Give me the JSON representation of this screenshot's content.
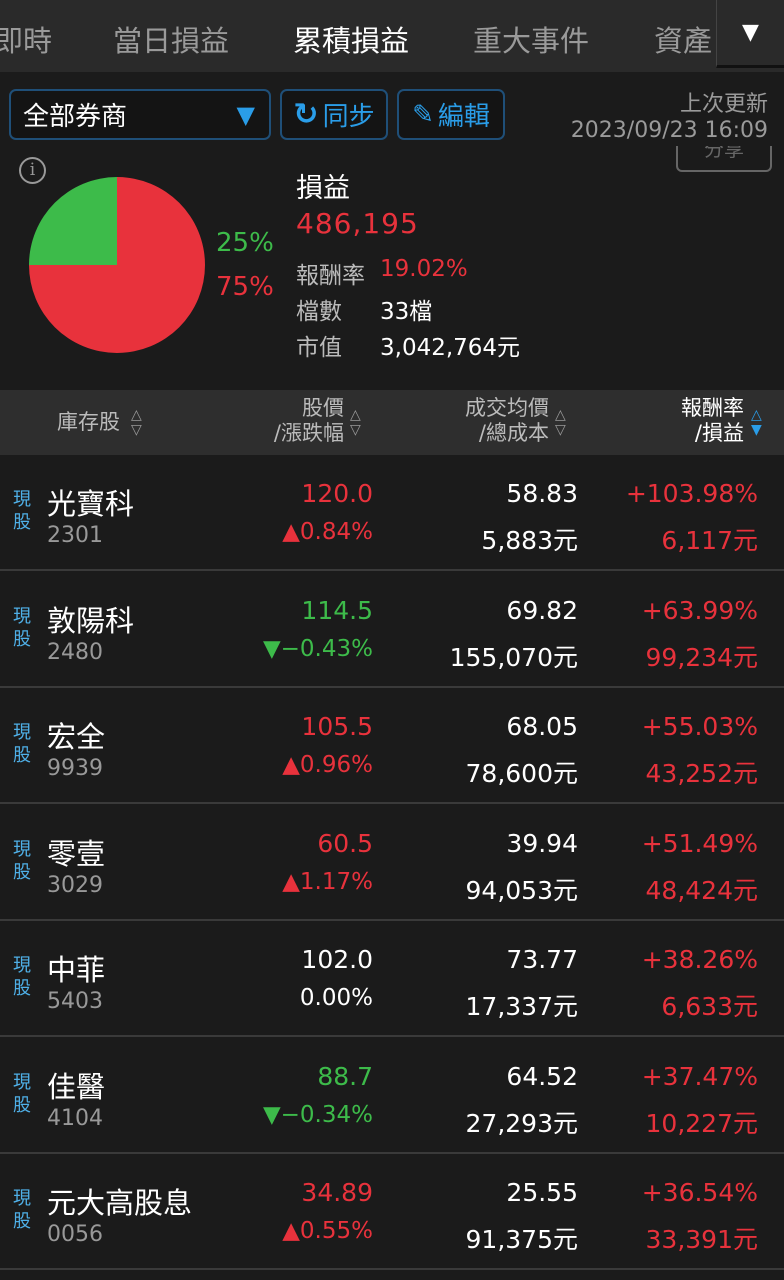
{
  "tabs": [
    {
      "label": "即時"
    },
    {
      "label": "當日損益"
    },
    {
      "label": "累積損益",
      "active": true
    },
    {
      "label": "重大事件"
    },
    {
      "label": "資產"
    }
  ],
  "toolbar": {
    "broker_select": "全部券商",
    "sync_label": "同步",
    "edit_label": "編輯",
    "last_update_label": "上次更新",
    "last_update_time": "2023/09/23 16:09",
    "share_label": "分享"
  },
  "summary": {
    "pl_label": "損益",
    "pl_value": "486,195",
    "return_label": "報酬率",
    "return_value": "19.02%",
    "count_label": "檔數",
    "count_value": "33檔",
    "mv_label": "市值",
    "mv_value": "3,042,764元",
    "pie": {
      "loss_pct": 25,
      "gain_pct": 75,
      "loss_label": "25%",
      "gain_label": "75%",
      "colors": {
        "gain": "#e8323c",
        "loss": "#3dbb4a"
      }
    }
  },
  "columns": {
    "stock": "庫存股",
    "price": "股價",
    "change": "/漲跌幅",
    "avg": "成交均價",
    "cost": "/總成本",
    "ret": "報酬率",
    "pl": "/損益"
  },
  "rows": [
    {
      "tag": "現股",
      "name": "光寶科",
      "code": "2301",
      "price": "120.0",
      "change": "▲0.84%",
      "dir": "up",
      "avg": "58.83",
      "cost": "5,883元",
      "ret": "+103.98%",
      "pl": "6,117元"
    },
    {
      "tag": "現股",
      "name": "敦陽科",
      "code": "2480",
      "price": "114.5",
      "change": "▼−0.43%",
      "dir": "down",
      "avg": "69.82",
      "cost": "155,070元",
      "ret": "+63.99%",
      "pl": "99,234元"
    },
    {
      "tag": "現股",
      "name": "宏全",
      "code": "9939",
      "price": "105.5",
      "change": "▲0.96%",
      "dir": "up",
      "avg": "68.05",
      "cost": "78,600元",
      "ret": "+55.03%",
      "pl": "43,252元"
    },
    {
      "tag": "現股",
      "name": "零壹",
      "code": "3029",
      "price": "60.5",
      "change": "▲1.17%",
      "dir": "up",
      "avg": "39.94",
      "cost": "94,053元",
      "ret": "+51.49%",
      "pl": "48,424元"
    },
    {
      "tag": "現股",
      "name": "中菲",
      "code": "5403",
      "price": "102.0",
      "change": "0.00%",
      "dir": "flat",
      "avg": "73.77",
      "cost": "17,337元",
      "ret": "+38.26%",
      "pl": "6,633元"
    },
    {
      "tag": "現股",
      "name": "佳醫",
      "code": "4104",
      "price": "88.7",
      "change": "▼−0.34%",
      "dir": "down",
      "avg": "64.52",
      "cost": "27,293元",
      "ret": "+37.47%",
      "pl": "10,227元"
    },
    {
      "tag": "現股",
      "name": "元大高股息",
      "code": "0056",
      "price": "34.89",
      "change": "▲0.55%",
      "dir": "up",
      "avg": "25.55",
      "cost": "91,375元",
      "ret": "+36.54%",
      "pl": "33,391元"
    }
  ]
}
